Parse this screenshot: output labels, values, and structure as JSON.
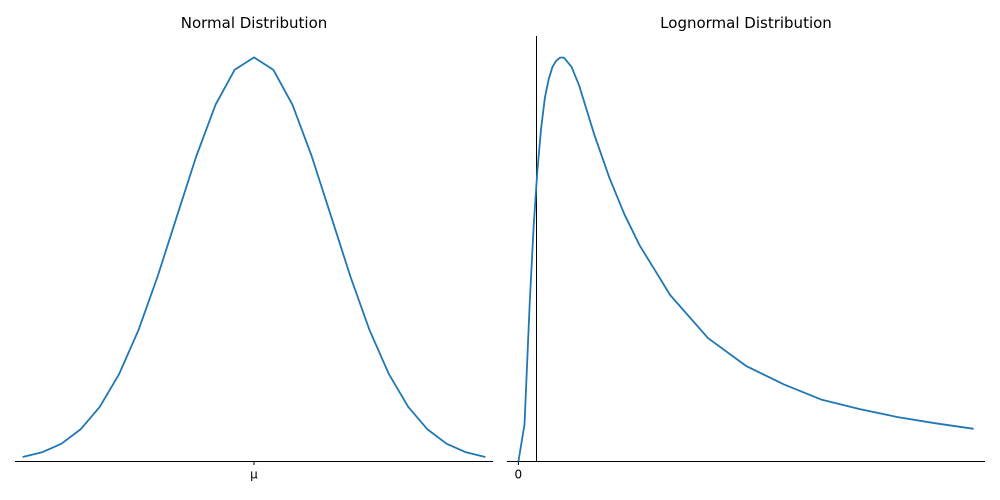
{
  "colors": {
    "line": "#1f77b4",
    "axis": "#000000",
    "background": "#ffffff"
  },
  "chart_data": [
    {
      "type": "line",
      "title": "Normal Distribution",
      "xlabel": "",
      "ylabel": "",
      "xlim": [
        -3.1,
        3.1
      ],
      "ylim": [
        0,
        0.42
      ],
      "xticks": [
        {
          "value": 0,
          "label": "μ"
        }
      ],
      "yticks": [],
      "grid": false,
      "spines": [
        "bottom"
      ],
      "series": [
        {
          "x": [
            -3.0,
            -2.75,
            -2.5,
            -2.25,
            -2.0,
            -1.75,
            -1.5,
            -1.25,
            -1.0,
            -0.75,
            -0.5,
            -0.25,
            0.0,
            0.25,
            0.5,
            0.75,
            1.0,
            1.25,
            1.5,
            1.75,
            2.0,
            2.25,
            2.5,
            2.75,
            3.0
          ],
          "y": [
            0.0044,
            0.0091,
            0.0175,
            0.0317,
            0.054,
            0.0863,
            0.1295,
            0.1826,
            0.242,
            0.3011,
            0.3521,
            0.3867,
            0.3989,
            0.3867,
            0.3521,
            0.3011,
            0.242,
            0.1826,
            0.1295,
            0.0863,
            0.054,
            0.0317,
            0.0175,
            0.0091,
            0.0044
          ]
        }
      ]
    },
    {
      "type": "line",
      "title": "Lognormal Distribution",
      "xlabel": "",
      "ylabel": "",
      "xlim": [
        -0.15,
        6.15
      ],
      "ylim": [
        0,
        0.69
      ],
      "xticks": [
        {
          "value": 0,
          "label": "0"
        }
      ],
      "yticks": [],
      "grid": false,
      "spines": [
        "left",
        "bottom"
      ],
      "series": [
        {
          "x": [
            0.0,
            0.08,
            0.15,
            0.2,
            0.25,
            0.3,
            0.35,
            0.4,
            0.45,
            0.5,
            0.55,
            0.6,
            0.7,
            0.8,
            0.9,
            1.0,
            1.2,
            1.4,
            1.6,
            1.8,
            2.0,
            2.5,
            3.0,
            3.5,
            4.0,
            4.5,
            5.0,
            5.5,
            6.0
          ],
          "y": [
            0.0,
            0.06,
            0.26,
            0.38,
            0.47,
            0.54,
            0.59,
            0.62,
            0.64,
            0.65,
            0.655,
            0.655,
            0.64,
            0.61,
            0.57,
            0.53,
            0.46,
            0.4,
            0.35,
            0.31,
            0.27,
            0.2,
            0.155,
            0.125,
            0.1,
            0.085,
            0.072,
            0.062,
            0.053
          ]
        }
      ]
    }
  ]
}
